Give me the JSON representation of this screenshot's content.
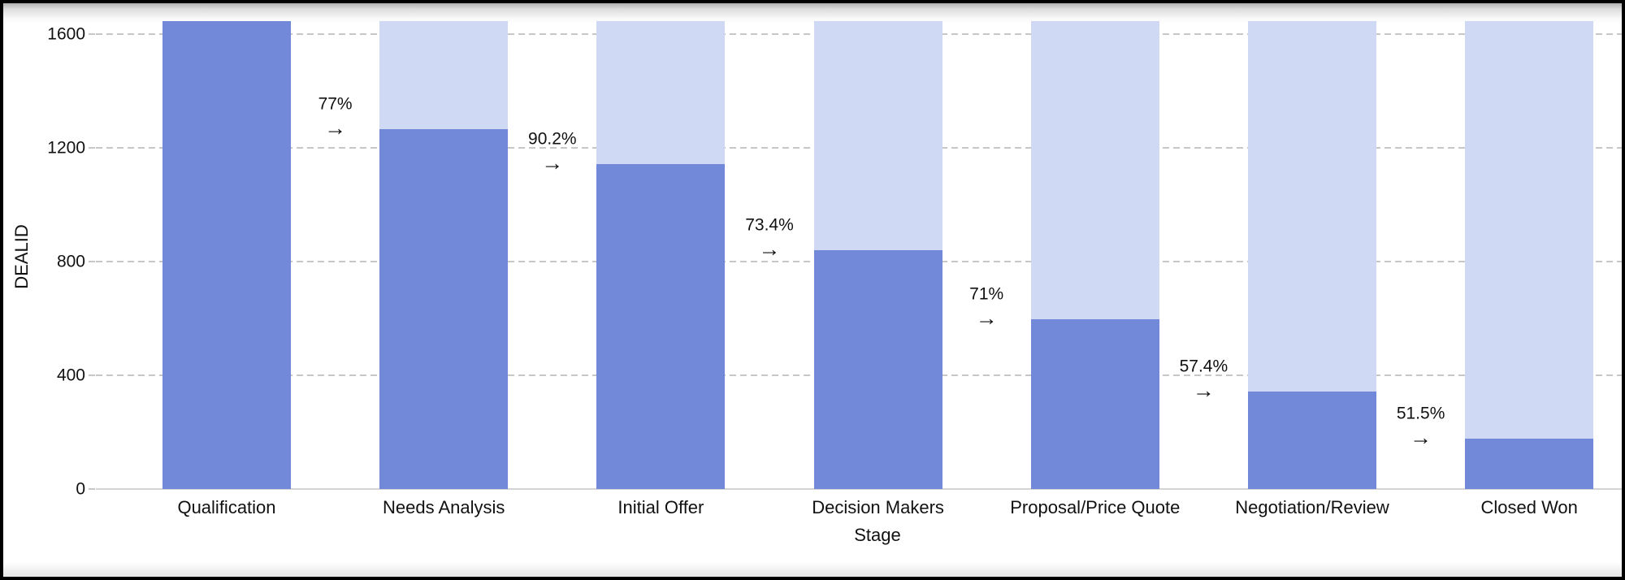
{
  "chart_data": {
    "type": "bar",
    "subtype": "funnel-conversion",
    "title": "",
    "xlabel": "Stage",
    "ylabel": "DEALID",
    "categories": [
      "Qualification",
      "Needs Analysis",
      "Initial Offer",
      "Decision Makers",
      "Proposal/Price Quote",
      "Negotiation/Review",
      "Closed Won"
    ],
    "values": [
      1645,
      1267,
      1143,
      839,
      596,
      342,
      176
    ],
    "background_bar_value": 1645,
    "conversion_labels": [
      "77%",
      "90.2%",
      "73.4%",
      "71%",
      "57.4%",
      "51.5%"
    ],
    "arrow_glyph": "→",
    "yticks": [
      0,
      400,
      800,
      1200,
      1600
    ],
    "ylim": [
      0,
      1680
    ],
    "grid": "horizontal-dashed",
    "legend": "none",
    "colors": {
      "bar": "#7289da",
      "bar_background": "#d0d9f4",
      "gridline": "#c7c7c7",
      "axis_line": "#d4d4d4",
      "text": "#111111"
    }
  }
}
